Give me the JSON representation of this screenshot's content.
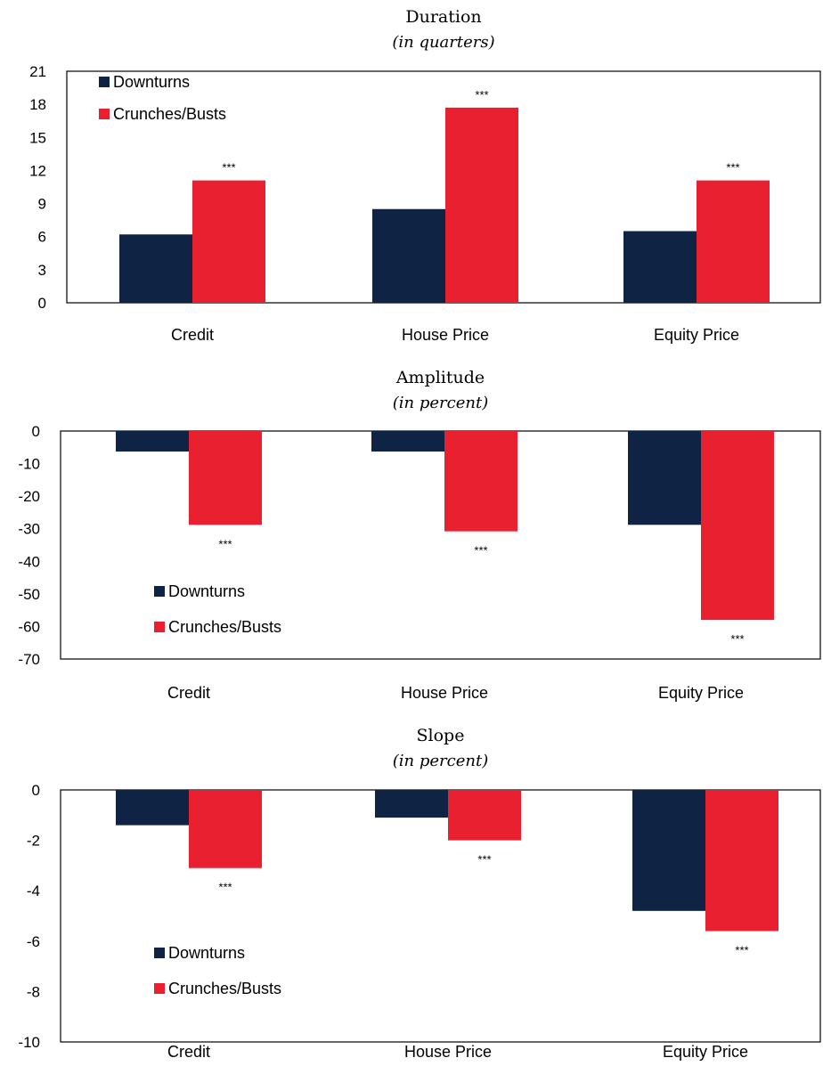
{
  "colors": {
    "downturns": "#0f2444",
    "crunches": "#e8202f"
  },
  "chart_data": [
    {
      "type": "bar",
      "title": "Duration",
      "subtitle": "(in quarters)",
      "categories": [
        "Credit",
        "House Price",
        "Equity Price"
      ],
      "yticks": [
        "0",
        "3",
        "6",
        "9",
        "12",
        "15",
        "18",
        "21"
      ],
      "ylim": [
        0,
        21
      ],
      "legend_position": "top-left",
      "series": [
        {
          "name": "Downturns",
          "values": [
            6.2,
            8.5,
            6.5
          ]
        },
        {
          "name": "Crunches/Busts",
          "values": [
            11.1,
            17.7,
            11.1
          ]
        }
      ],
      "annotations": [
        "***",
        "***",
        "***"
      ]
    },
    {
      "type": "bar",
      "title": "Amplitude",
      "subtitle": "(in percent)",
      "categories": [
        "Credit",
        "House Price",
        "Equity Price"
      ],
      "yticks": [
        "0",
        "-10",
        "-20",
        "-30",
        "-40",
        "-50",
        "-60",
        "-70"
      ],
      "ylim": [
        -70,
        0
      ],
      "legend_position": "bottom-left",
      "series": [
        {
          "name": "Downturns",
          "values": [
            -6.3,
            -6.3,
            -28.8
          ]
        },
        {
          "name": "Crunches/Busts",
          "values": [
            -28.8,
            -30.8,
            -58.0
          ]
        }
      ],
      "annotations": [
        "***",
        "***",
        "***"
      ]
    },
    {
      "type": "bar",
      "title": "Slope",
      "subtitle": "(in percent)",
      "categories": [
        "Credit",
        "House Price",
        "Equity Price"
      ],
      "yticks": [
        "0",
        "-2",
        "-4",
        "-6",
        "-8",
        "-10"
      ],
      "ylim": [
        -10,
        0
      ],
      "legend_position": "bottom-left",
      "series": [
        {
          "name": "Downturns",
          "values": [
            -1.4,
            -1.1,
            -4.8
          ]
        },
        {
          "name": "Crunches/Busts",
          "values": [
            -3.1,
            -2.0,
            -5.6
          ]
        }
      ],
      "annotations": [
        "***",
        "***",
        "***"
      ]
    }
  ]
}
